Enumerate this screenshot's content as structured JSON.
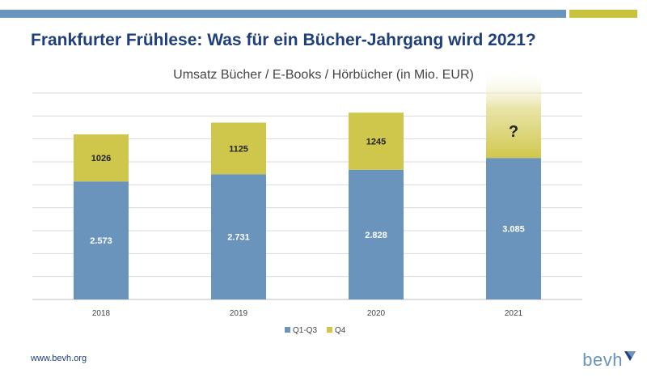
{
  "header": {
    "title": "Frankfurter Frühlese: Was für ein Bücher-Jahrgang wird 2021?"
  },
  "chart_data": {
    "type": "bar",
    "stacked": true,
    "title": "Umsatz Bücher / E-Books / Hörbücher (in Mio. EUR)",
    "categories": [
      "2018",
      "2019",
      "2020",
      "2021"
    ],
    "series": [
      {
        "name": "Q1-Q3",
        "color": "#6a94bc",
        "values": [
          2573,
          2731,
          2828,
          3085
        ],
        "labels": [
          "2.573",
          "2.731",
          "2.828",
          "3.085"
        ]
      },
      {
        "name": "Q4",
        "color": "#cfc74c",
        "values": [
          1026,
          1125,
          1245,
          null
        ],
        "labels": [
          "1026",
          "1125",
          "1245",
          "?"
        ]
      }
    ],
    "ylim": [
      0,
      4500
    ],
    "grid": true,
    "legend": "bottom"
  },
  "footer": {
    "url": "www.bevh.org",
    "logo_text": "bevh"
  }
}
